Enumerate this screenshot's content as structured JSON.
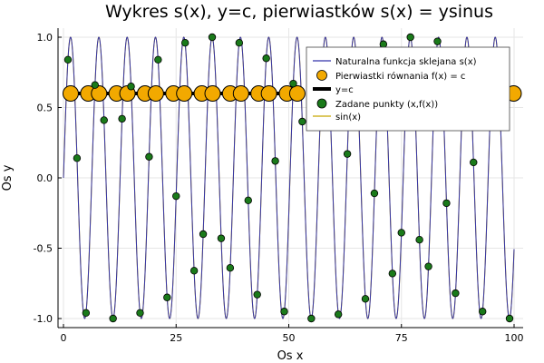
{
  "chart_data": {
    "type": "line",
    "title": "Wykres s(x), y=c, pierwiastków s(x) = ysinus",
    "xlabel": "Os x",
    "ylabel": "Os y",
    "xlim": [
      0,
      100
    ],
    "ylim": [
      -1.0,
      1.0
    ],
    "x_ticks": [
      0,
      25,
      50,
      75,
      100
    ],
    "y_ticks": [
      -1.0,
      -0.5,
      0.0,
      0.5,
      1.0
    ],
    "x_tick_labels": [
      "0",
      "25",
      "50",
      "75",
      "100"
    ],
    "y_tick_labels": [
      "-1.0",
      "-0.5",
      "0.0",
      "0.5",
      "1.0"
    ],
    "grid": true,
    "legend_position": "top-right",
    "series": [
      {
        "name": "Naturalna funkcja sklejana s(x)",
        "kind": "line",
        "color": "#3333aa",
        "function": "sin(x)",
        "x_range": [
          0,
          100
        ]
      },
      {
        "name": "Pierwiastki równania f(x) = c",
        "kind": "scatter",
        "color": "#f2a900",
        "x": [
          1.6,
          5.5,
          7.9,
          11.8,
          14.2,
          18.1,
          20.5,
          24.4,
          26.8,
          30.7,
          33.1,
          37.0,
          39.4,
          43.3,
          45.6,
          49.6,
          51.9,
          55.9,
          58.2,
          62.1,
          64.5,
          68.4,
          70.8,
          74.7,
          77.1,
          81.0,
          83.4,
          87.3,
          89.7,
          93.6,
          96.0,
          99.9
        ],
        "y_value": 0.6
      },
      {
        "name": "y=c",
        "kind": "line",
        "color": "#000000",
        "y_value": 0.6
      },
      {
        "name": "Zadane punkty (x,f(x))",
        "kind": "scatter",
        "color": "#1a7a1a",
        "x": [
          1,
          3,
          5,
          7,
          9,
          11,
          13,
          15,
          17,
          19,
          21,
          23,
          25,
          27,
          29,
          31,
          33,
          35,
          37,
          39,
          41,
          43,
          45,
          47,
          49,
          51,
          53,
          55,
          57,
          59,
          61,
          63,
          65,
          67,
          69,
          71,
          73,
          75,
          77,
          79,
          81,
          83,
          85,
          87,
          89,
          91,
          93,
          95,
          97,
          99
        ],
        "y": [
          0.84,
          0.14,
          -0.96,
          0.66,
          0.41,
          -1.0,
          0.42,
          0.65,
          -0.96,
          0.15,
          0.84,
          -0.85,
          -0.13,
          0.96,
          -0.66,
          -0.4,
          1.0,
          -0.43,
          -0.64,
          0.96,
          -0.16,
          -0.83,
          0.85,
          0.12,
          -0.95,
          0.67,
          0.4,
          -1.0,
          0.44,
          0.64,
          -0.97,
          0.17,
          0.83,
          -0.86,
          -0.11,
          0.95,
          -0.68,
          -0.39,
          1.0,
          -0.44,
          -0.63,
          0.97,
          -0.18,
          -0.82,
          0.86,
          0.11,
          -0.95,
          0.68,
          0.38,
          -1.0
        ]
      },
      {
        "name": "sin(x)",
        "kind": "line",
        "color": "#c7a600",
        "function": "sin(x)",
        "x_range": [
          0,
          100
        ]
      }
    ]
  }
}
